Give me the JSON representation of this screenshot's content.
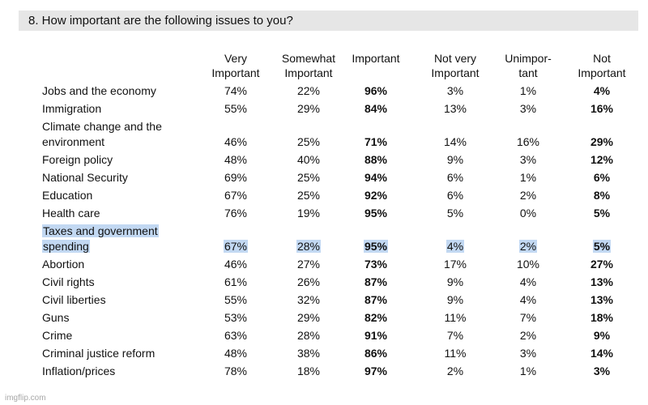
{
  "question": "8. How important are the following issues to you?",
  "columns": [
    "Very\nImportant",
    "Somewhat\nImportant",
    "Important",
    "Not very\nImportant",
    "Unimpor-\ntant",
    "Not\nImportant"
  ],
  "rows": [
    {
      "label": "Jobs and the economy",
      "values": [
        "74%",
        "22%",
        "96%",
        "3%",
        "1%",
        "4%"
      ]
    },
    {
      "label": "Immigration",
      "values": [
        "55%",
        "29%",
        "84%",
        "13%",
        "3%",
        "16%"
      ]
    },
    {
      "label": "Climate change and the\nenvironment",
      "values": [
        "46%",
        "25%",
        "71%",
        "14%",
        "16%",
        "29%"
      ]
    },
    {
      "label": "Foreign policy",
      "values": [
        "48%",
        "40%",
        "88%",
        "9%",
        "3%",
        "12%"
      ]
    },
    {
      "label": "National Security",
      "values": [
        "69%",
        "25%",
        "94%",
        "6%",
        "1%",
        "6%"
      ]
    },
    {
      "label": "Education",
      "values": [
        "67%",
        "25%",
        "92%",
        "6%",
        "2%",
        "8%"
      ]
    },
    {
      "label": "Health care",
      "values": [
        "76%",
        "19%",
        "95%",
        "5%",
        "0%",
        "5%"
      ]
    },
    {
      "label": "Taxes and government\nspending",
      "values": [
        "67%",
        "28%",
        "95%",
        "4%",
        "2%",
        "5%"
      ],
      "highlighted": true
    },
    {
      "label": "Abortion",
      "values": [
        "46%",
        "27%",
        "73%",
        "17%",
        "10%",
        "27%"
      ]
    },
    {
      "label": "Civil rights",
      "values": [
        "61%",
        "26%",
        "87%",
        "9%",
        "4%",
        "13%"
      ]
    },
    {
      "label": "Civil liberties",
      "values": [
        "55%",
        "32%",
        "87%",
        "9%",
        "4%",
        "13%"
      ]
    },
    {
      "label": "Guns",
      "values": [
        "53%",
        "29%",
        "82%",
        "11%",
        "7%",
        "18%"
      ]
    },
    {
      "label": "Crime",
      "values": [
        "63%",
        "28%",
        "91%",
        "7%",
        "2%",
        "9%"
      ]
    },
    {
      "label": "Criminal justice reform",
      "values": [
        "48%",
        "38%",
        "86%",
        "11%",
        "3%",
        "14%"
      ]
    },
    {
      "label": "Inflation/prices",
      "values": [
        "78%",
        "18%",
        "97%",
        "2%",
        "1%",
        "3%"
      ]
    }
  ],
  "bold_columns": [
    2,
    5
  ],
  "highlight_color": "#c2d8f2",
  "watermark": "imgflip.com"
}
